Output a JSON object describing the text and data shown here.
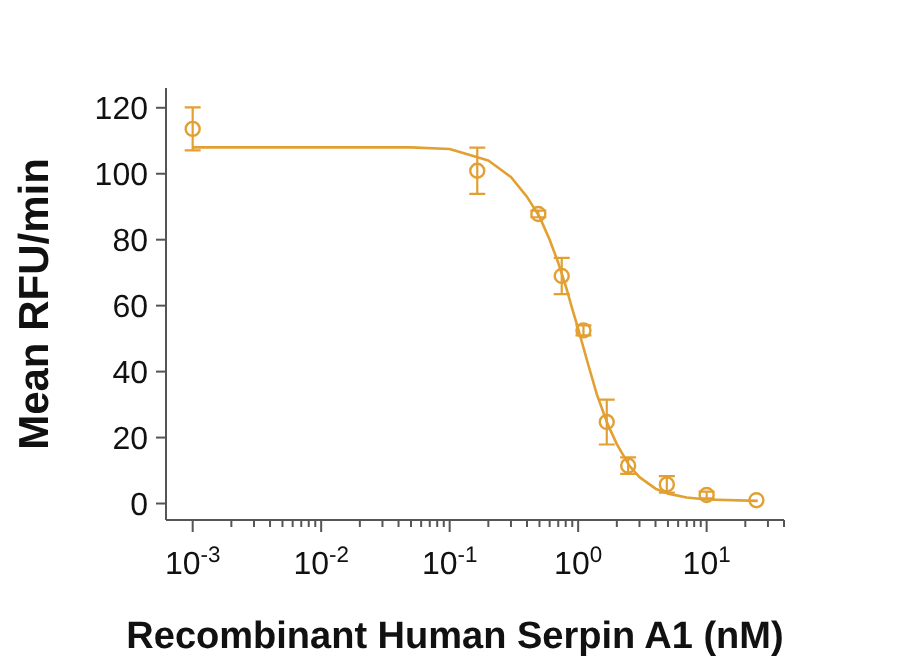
{
  "chart_data": {
    "type": "scatter",
    "xlabel": "Recombinant Human Serpin A1 (nM)",
    "ylabel": "Mean RFU/min",
    "log": "x",
    "grid": false,
    "marker": "circle",
    "xlim": [
      0.00062,
      40
    ],
    "ylim": [
      -5,
      126
    ],
    "xticks": [
      {
        "value": 0.001,
        "label": "10$^{-3}$"
      },
      {
        "value": 0.002,
        "label": null
      },
      {
        "value": 0.003,
        "label": null
      },
      {
        "value": 0.004,
        "label": null
      },
      {
        "value": 0.005,
        "label": null
      },
      {
        "value": 0.006,
        "label": null
      },
      {
        "value": 0.007,
        "label": null
      },
      {
        "value": 0.008,
        "label": null
      },
      {
        "value": 0.009,
        "label": null
      },
      {
        "value": 0.01,
        "label": "10$^{-2}$"
      },
      {
        "value": 0.02,
        "label": null
      },
      {
        "value": 0.03,
        "label": null
      },
      {
        "value": 0.04,
        "label": null
      },
      {
        "value": 0.05,
        "label": null
      },
      {
        "value": 0.06,
        "label": null
      },
      {
        "value": 0.07,
        "label": null
      },
      {
        "value": 0.08,
        "label": null
      },
      {
        "value": 0.09,
        "label": null
      },
      {
        "value": 0.1,
        "label": "10$^{-1}$"
      },
      {
        "value": 0.2,
        "label": null
      },
      {
        "value": 0.3,
        "label": null
      },
      {
        "value": 0.4,
        "label": null
      },
      {
        "value": 0.5,
        "label": null
      },
      {
        "value": 0.6,
        "label": null
      },
      {
        "value": 0.7,
        "label": null
      },
      {
        "value": 0.8,
        "label": null
      },
      {
        "value": 0.9,
        "label": null
      },
      {
        "value": 1,
        "label": "10$^{0}$"
      },
      {
        "value": 2,
        "label": null
      },
      {
        "value": 3,
        "label": null
      },
      {
        "value": 4,
        "label": null
      },
      {
        "value": 5,
        "label": null
      },
      {
        "value": 6,
        "label": null
      },
      {
        "value": 7,
        "label": null
      },
      {
        "value": 8,
        "label": null
      },
      {
        "value": 9,
        "label": null
      },
      {
        "value": 10,
        "label": "10$^{1}$"
      },
      {
        "value": 20,
        "label": null
      },
      {
        "value": 30,
        "label": null
      },
      {
        "value": 40,
        "label": null
      }
    ],
    "yticks": [
      0,
      20,
      40,
      60,
      80,
      100,
      120
    ],
    "series": [
      {
        "type": "line",
        "color": "#e3a032",
        "line_style": "solid",
        "marker": "none",
        "x": [
          0.001,
          0.05,
          0.1,
          0.2,
          0.3,
          0.4,
          0.5,
          0.6,
          0.7,
          0.8,
          0.9,
          1.0,
          1.2,
          1.4,
          1.7,
          2,
          2.5,
          3,
          4,
          5,
          7,
          10,
          25
        ],
        "values": [
          108,
          108,
          107.5,
          104,
          99,
          93,
          87,
          80,
          73,
          66,
          59,
          53,
          42,
          33,
          24,
          18,
          11.5,
          8,
          4.5,
          3,
          1.8,
          1.2,
          0.8
        ]
      },
      {
        "color": "#e3a032",
        "x": [
          0.001,
          0.164,
          0.49,
          0.745,
          1.1,
          1.67,
          2.45,
          4.9,
          10,
          24.4
        ],
        "values": [
          113.6,
          100.9,
          87.8,
          69,
          52.5,
          24.7,
          11.5,
          5.8,
          2.6,
          1.0
        ],
        "errors": [
          6.5,
          7,
          1,
          5.5,
          1.5,
          6.8,
          2.5,
          2.5,
          1,
          null
        ]
      }
    ]
  }
}
